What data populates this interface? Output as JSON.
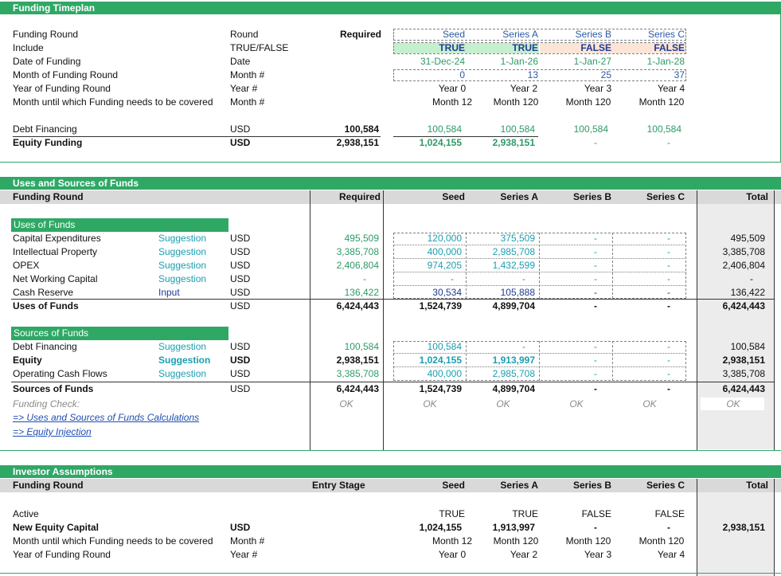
{
  "timeplan": {
    "title": "Funding Timeplan",
    "col_required": "Required",
    "rounds": [
      "Seed",
      "Series A",
      "Series B",
      "Series C"
    ],
    "rows": [
      {
        "label": "Funding Round",
        "unit": "Round",
        "required": "",
        "values": [
          "Seed",
          "Series A",
          "Series B",
          "Series C"
        ]
      },
      {
        "label": "Include",
        "unit": "TRUE/FALSE",
        "required": "",
        "values": [
          "TRUE",
          "TRUE",
          "FALSE",
          "FALSE"
        ]
      },
      {
        "label": "Date of Funding",
        "unit": "Date",
        "required": "",
        "values": [
          "31-Dec-24",
          "1-Jan-26",
          "1-Jan-27",
          "1-Jan-28"
        ]
      },
      {
        "label": "Month of Funding Round",
        "unit": "Month #",
        "required": "",
        "values": [
          "0",
          "13",
          "25",
          "37"
        ]
      },
      {
        "label": "Year of Funding Round",
        "unit": "Year #",
        "required": "",
        "values": [
          "Year 0",
          "Year 2",
          "Year 3",
          "Year 4"
        ]
      },
      {
        "label": "Month until which Funding needs to be covered",
        "unit": "Month #",
        "required": "",
        "values": [
          "Month 12",
          "Month 120",
          "Month 120",
          "Month 120"
        ]
      },
      {
        "label": "Debt Financing",
        "unit": "USD",
        "required": "100,584",
        "values": [
          "100,584",
          "100,584",
          "100,584",
          "100,584"
        ]
      },
      {
        "label": "Equity Funding",
        "unit": "USD",
        "required": "2,938,151",
        "values": [
          "1,024,155",
          "2,938,151",
          "-",
          "-"
        ]
      }
    ],
    "include_colors": {
      "true_bg": "#c6efce",
      "false_bg": "#fce4d6"
    }
  },
  "uses_sources": {
    "title": "Uses and Sources of Funds",
    "header": {
      "label": "Funding Round",
      "required": "Required",
      "seed": "Seed",
      "series_a": "Series A",
      "series_b": "Series B",
      "series_c": "Series C",
      "total": "Total"
    },
    "uses_title": "Uses of Funds",
    "uses": [
      {
        "label": "Capital Expenditures",
        "tag": "Suggestion",
        "unit": "USD",
        "required": "495,509",
        "vals": [
          "120,000",
          "375,509",
          "-",
          "-"
        ],
        "total": "495,509"
      },
      {
        "label": "Intellectual Property",
        "tag": "Suggestion",
        "unit": "USD",
        "required": "3,385,708",
        "vals": [
          "400,000",
          "2,985,708",
          "-",
          "-"
        ],
        "total": "3,385,708"
      },
      {
        "label": "OPEX",
        "tag": "Suggestion",
        "unit": "USD",
        "required": "2,406,804",
        "vals": [
          "974,205",
          "1,432,599",
          "-",
          "-"
        ],
        "total": "2,406,804"
      },
      {
        "label": "Net Working Capital",
        "tag": "Suggestion",
        "unit": "USD",
        "required": "-",
        "vals": [
          "-",
          "-",
          "-",
          "-"
        ],
        "total": "-"
      },
      {
        "label": "Cash Reserve",
        "tag": "Input",
        "unit": "USD",
        "required": "136,422",
        "vals": [
          "30,534",
          "105,888",
          "-",
          "-"
        ],
        "total": "136,422"
      }
    ],
    "uses_total": {
      "label": "Uses of Funds",
      "unit": "USD",
      "required": "6,424,443",
      "vals": [
        "1,524,739",
        "4,899,704",
        "-",
        "-"
      ],
      "total": "6,424,443"
    },
    "sources_title": "Sources of Funds",
    "sources": [
      {
        "label": "Debt Financing",
        "tag": "Suggestion",
        "unit": "USD",
        "required": "100,584",
        "vals": [
          "100,584",
          "-",
          "-",
          "-"
        ],
        "total": "100,584"
      },
      {
        "label": "Equity",
        "tag": "Suggestion",
        "unit": "USD",
        "required": "2,938,151",
        "vals": [
          "1,024,155",
          "1,913,997",
          "-",
          "-"
        ],
        "total": "2,938,151"
      },
      {
        "label": "Operating Cash Flows",
        "tag": "Suggestion",
        "unit": "USD",
        "required": "3,385,708",
        "vals": [
          "400,000",
          "2,985,708",
          "-",
          "-"
        ],
        "total": "3,385,708"
      }
    ],
    "sources_total": {
      "label": "Sources of Funds",
      "unit": "USD",
      "required": "6,424,443",
      "vals": [
        "1,524,739",
        "4,899,704",
        "-",
        "-"
      ],
      "total": "6,424,443"
    },
    "check": {
      "label": "Funding Check:",
      "required": "OK",
      "vals": [
        "OK",
        "OK",
        "OK",
        "OK"
      ],
      "total": "OK"
    },
    "links": [
      "=> Uses and Sources of Funds Calculations",
      "=> Equity Injection"
    ]
  },
  "investor": {
    "title": "Investor Assumptions",
    "header": {
      "label": "Funding Round",
      "entry": "Entry Stage",
      "seed": "Seed",
      "series_a": "Series A",
      "series_b": "Series B",
      "series_c": "Series C",
      "total": "Total"
    },
    "rows": [
      {
        "label": "Active",
        "unit": "",
        "vals": [
          "TRUE",
          "TRUE",
          "FALSE",
          "FALSE"
        ],
        "total": "",
        "bold": false
      },
      {
        "label": "New Equity Capital",
        "unit": "USD",
        "vals": [
          "1,024,155",
          "1,913,997",
          "-",
          "-"
        ],
        "total": "2,938,151",
        "bold": true
      },
      {
        "label": "Month until which Funding needs to be covered",
        "unit": "Month #",
        "vals": [
          "Month 12",
          "Month 120",
          "Month 120",
          "Month 120"
        ],
        "total": "",
        "bold": false
      },
      {
        "label": "Year of Funding Round",
        "unit": "Year #",
        "vals": [
          "Year 0",
          "Year 2",
          "Year 3",
          "Year 4"
        ],
        "total": "",
        "bold": false
      }
    ]
  }
}
